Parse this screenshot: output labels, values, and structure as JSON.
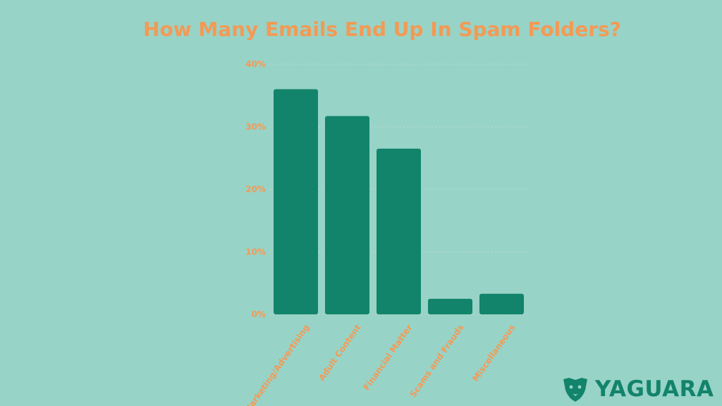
{
  "colors": {
    "background": "#98d3c7",
    "accent": "#f39a55",
    "bar": "#12846b",
    "grid": "#b8ddcc",
    "brand": "#12846b"
  },
  "chart_data": {
    "type": "bar",
    "title": "How Many Emails End Up In Spam Folders?",
    "categories": [
      "Marketing/Advertising",
      "Adult Content",
      "Financial Matter",
      "Scams and Frauds",
      "Miscellaneous"
    ],
    "values": [
      36,
      31.7,
      26.5,
      2.5,
      3.3
    ],
    "ylim": [
      0,
      40
    ],
    "yticks": [
      0,
      10,
      20,
      30,
      40
    ],
    "ytick_labels": [
      "0%",
      "10%",
      "20%",
      "30%",
      "40%"
    ],
    "xlabel": "",
    "ylabel": "",
    "grid": true,
    "legend": "none"
  },
  "brand": {
    "name": "YAGUARA",
    "icon": "jaguar-head-icon"
  }
}
